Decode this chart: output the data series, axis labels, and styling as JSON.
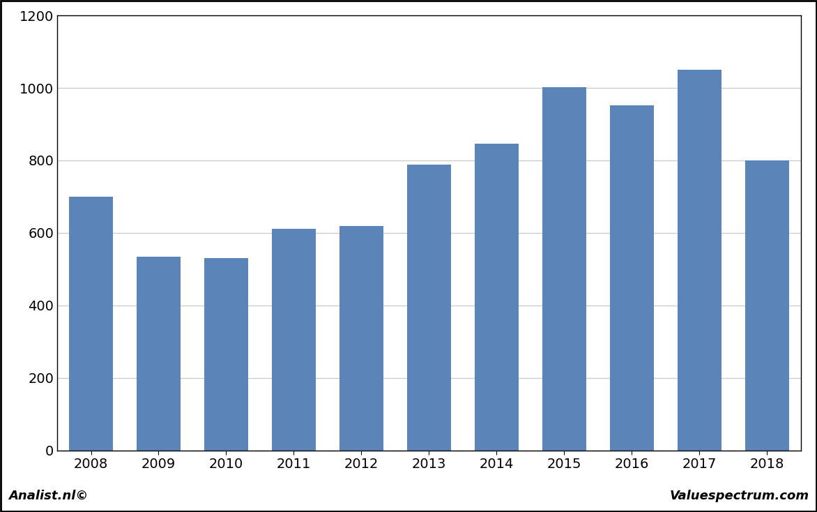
{
  "categories": [
    "2008",
    "2009",
    "2010",
    "2011",
    "2012",
    "2013",
    "2014",
    "2015",
    "2016",
    "2017",
    "2018"
  ],
  "values": [
    700,
    535,
    530,
    612,
    620,
    788,
    847,
    1002,
    952,
    1050,
    800
  ],
  "bar_color": "#5B84B8",
  "ylim": [
    0,
    1200
  ],
  "yticks": [
    0,
    200,
    400,
    600,
    800,
    1000,
    1200
  ],
  "background_color": "#FFFFFF",
  "plot_background_color": "#FFFFFF",
  "footer_background_color": "#D3D3D3",
  "grid_color": "#CCCCCC",
  "border_color": "#000000",
  "footer_left": "Analist.nl©",
  "footer_right": "Valuespectrum.com",
  "footer_fontsize": 13,
  "tick_fontsize": 14,
  "bar_edge_color": "none",
  "bar_width": 0.65
}
